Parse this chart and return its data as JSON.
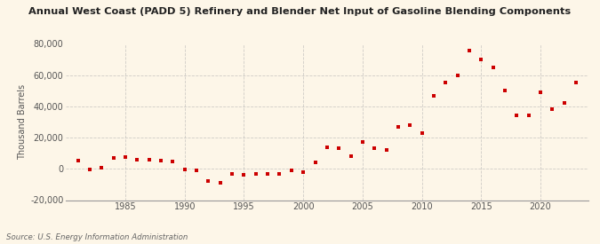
{
  "title": "Annual West Coast (PADD 5) Refinery and Blender Net Input of Gasoline Blending Components",
  "ylabel": "Thousand Barrels",
  "source": "Source: U.S. Energy Information Administration",
  "background_color": "#fdf6e8",
  "plot_bg_color": "#fdf6e8",
  "marker_color": "#cc0000",
  "marker": "s",
  "markersize": 3.5,
  "years": [
    1981,
    1982,
    1983,
    1984,
    1985,
    1986,
    1987,
    1988,
    1989,
    1990,
    1991,
    1992,
    1993,
    1994,
    1995,
    1996,
    1997,
    1998,
    1999,
    2000,
    2001,
    2002,
    2003,
    2004,
    2005,
    2006,
    2007,
    2008,
    2009,
    2010,
    2011,
    2012,
    2013,
    2014,
    2015,
    2016,
    2017,
    2018,
    2019,
    2020,
    2021,
    2022,
    2023
  ],
  "values": [
    5000,
    -500,
    500,
    7000,
    7500,
    6000,
    6000,
    5000,
    4500,
    -500,
    -1000,
    -8000,
    -9000,
    -3500,
    -4000,
    -3000,
    -3500,
    -3500,
    -1000,
    -2000,
    4000,
    14000,
    13500,
    8000,
    17000,
    13000,
    12000,
    27000,
    28000,
    23000,
    47000,
    55000,
    60000,
    76000,
    70000,
    65000,
    50000,
    34000,
    34000,
    49000,
    38000,
    42000,
    55000
  ],
  "ylim": [
    -20000,
    80000
  ],
  "yticks": [
    -20000,
    0,
    20000,
    40000,
    60000,
    80000
  ],
  "xticks": [
    1985,
    1990,
    1995,
    2000,
    2005,
    2010,
    2015,
    2020
  ],
  "grid_color": "#b0b0b0",
  "grid_style": "--",
  "grid_alpha": 0.6,
  "xlim": [
    1980,
    2024
  ]
}
